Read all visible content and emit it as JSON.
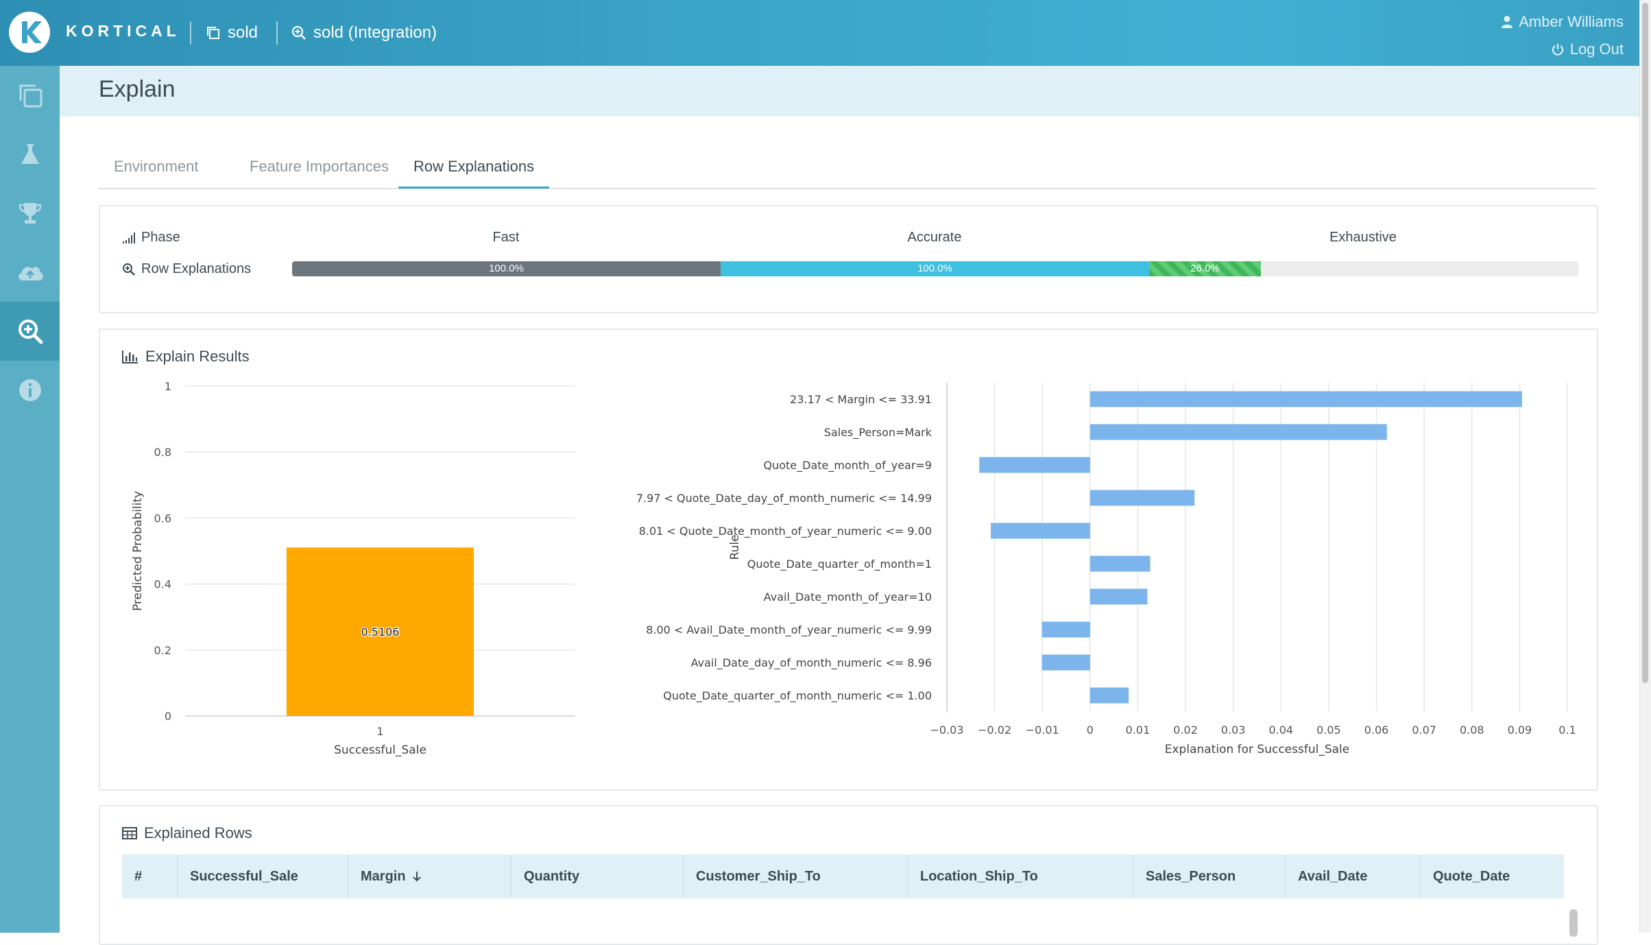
{
  "app": {
    "brand": "KORTICAL",
    "breadcrumb": [
      {
        "label": "sold",
        "icon": "copy-icon"
      },
      {
        "label": "sold (Integration)",
        "icon": "search-plus-icon"
      }
    ],
    "user": {
      "name": "Amber Williams",
      "logout": "Log Out"
    }
  },
  "sidebar": {
    "items": [
      {
        "name": "projects",
        "icon": "copy-icon",
        "active": false
      },
      {
        "name": "lab",
        "icon": "flask-icon",
        "active": false
      },
      {
        "name": "leaderboard",
        "icon": "trophy-icon",
        "active": false
      },
      {
        "name": "deploy",
        "icon": "cloud-upload-icon",
        "active": false
      },
      {
        "name": "explain",
        "icon": "search-plus-icon",
        "active": true
      },
      {
        "name": "info",
        "icon": "info-icon",
        "active": false
      }
    ]
  },
  "page": {
    "title": "Explain"
  },
  "tabs": [
    {
      "label": "Environment",
      "active": false
    },
    {
      "label": "Feature Importances",
      "active": false
    },
    {
      "label": "Row Explanations",
      "active": true
    }
  ],
  "phase": {
    "phase_label": "Phase",
    "row_label": "Row Explanations",
    "columns": [
      "Fast",
      "Accurate",
      "Exhaustive"
    ],
    "progress": [
      {
        "phase": "Fast",
        "label": "100.0%",
        "value": 1.0
      },
      {
        "phase": "Accurate",
        "label": "100.0%",
        "value": 1.0
      },
      {
        "phase": "Exhaustive",
        "label": "26.0%",
        "value": 0.26
      }
    ]
  },
  "results": {
    "title": "Explain Results"
  },
  "chart_data": [
    {
      "type": "bar",
      "categories": [
        "1"
      ],
      "values": [
        0.5106
      ],
      "data_labels": [
        "0.5106"
      ],
      "xlabel": "Successful_Sale",
      "ylabel": "Predicted Probability",
      "ylim": [
        0,
        1
      ],
      "yticks": [
        "0",
        "0.2",
        "0.4",
        "0.6",
        "0.8",
        "1"
      ],
      "grid": true,
      "color": "#ffa800"
    },
    {
      "type": "bar",
      "orientation": "horizontal",
      "categories": [
        "23.17 < Margin <= 33.91",
        "Sales_Person=Mark",
        "Quote_Date_month_of_year=9",
        "7.97 < Quote_Date_day_of_month_numeric <= 14.99",
        "8.01 < Quote_Date_month_of_year_numeric <= 9.00",
        "Quote_Date_quarter_of_month=1",
        "Avail_Date_month_of_year=10",
        "8.00 < Avail_Date_month_of_year_numeric <= 9.99",
        "Avail_Date_day_of_month_numeric <= 8.96",
        "Quote_Date_quarter_of_month_numeric <= 1.00"
      ],
      "values": [
        0.0905,
        0.0622,
        -0.0232,
        0.0219,
        -0.0208,
        0.0126,
        0.012,
        -0.0101,
        -0.0101,
        0.0081
      ],
      "xlabel": "Explanation for Successful_Sale",
      "ylabel": "Rule",
      "xlim": [
        -0.03,
        0.1
      ],
      "xticks": [
        "−0.03",
        "−0.02",
        "−0.01",
        "0",
        "0.01",
        "0.02",
        "0.03",
        "0.04",
        "0.05",
        "0.06",
        "0.07",
        "0.08",
        "0.09",
        "0.1"
      ],
      "grid": true,
      "color": "#7cb5ec"
    }
  ],
  "explained_rows": {
    "title": "Explained Rows",
    "columns": [
      "#",
      "Successful_Sale",
      "Margin",
      "Quantity",
      "Customer_Ship_To",
      "Location_Ship_To",
      "Sales_Person",
      "Avail_Date",
      "Quote_Date"
    ],
    "sorted_column": "Margin",
    "sort_direction": "descending"
  }
}
